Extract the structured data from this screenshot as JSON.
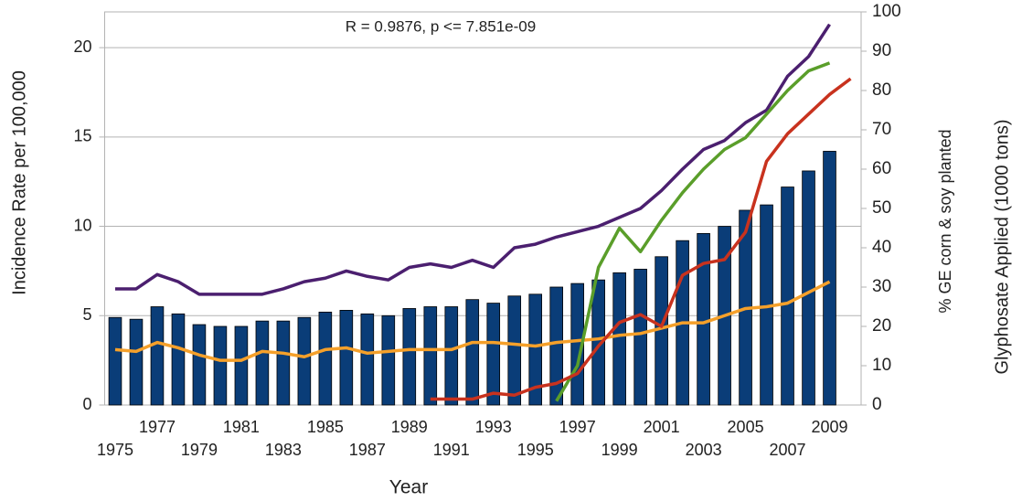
{
  "chart_data": {
    "type": "bar",
    "annotation": "R = 0.9876, p <= 7.851e-09",
    "x_label": "Year",
    "y_label": "Incidence Rate per 100,000",
    "y2_labels": [
      {
        "text": "% GE corn & soy planted",
        "color": "#5a9e2a"
      },
      {
        "text": "Glyphosate Applied (1000 tons)",
        "color": "#c8321e"
      }
    ],
    "categories": [
      "1975",
      null,
      "1977",
      null,
      "1979",
      null,
      "1981",
      null,
      "1983",
      null,
      "1985",
      null,
      "1987",
      null,
      "1989",
      null,
      "1991",
      null,
      "1993",
      null,
      "1995",
      null,
      "1997",
      null,
      "1999",
      null,
      "2001",
      null,
      "2003",
      null,
      "2005",
      null,
      "2007",
      null,
      "2009",
      null
    ],
    "ylim": [
      0,
      22
    ],
    "yticks": [
      0,
      5,
      10,
      15,
      20
    ],
    "y2lim": [
      0,
      100
    ],
    "y2ticks": [
      0,
      10,
      20,
      30,
      40,
      50,
      60,
      70,
      80,
      90,
      100
    ],
    "y2_color": "#c8321e",
    "grid": true,
    "series": [
      {
        "type": "bar",
        "color": "#0a3d78",
        "values": [
          4.9,
          4.8,
          5.5,
          5.1,
          4.5,
          4.4,
          4.4,
          4.7,
          4.7,
          4.9,
          5.2,
          5.3,
          5.1,
          5.0,
          5.4,
          5.5,
          5.5,
          5.9,
          5.7,
          6.1,
          6.2,
          6.6,
          6.8,
          7.0,
          7.4,
          7.6,
          8.3,
          9.2,
          9.6,
          10.0,
          10.9,
          11.2,
          12.2,
          13.1,
          14.2,
          null
        ]
      },
      {
        "type": "line",
        "color": "#4b1f6f",
        "values": [
          6.5,
          6.5,
          7.3,
          6.9,
          6.2,
          6.2,
          6.2,
          6.2,
          6.5,
          6.9,
          7.1,
          7.5,
          7.2,
          7.0,
          7.7,
          7.9,
          7.7,
          8.1,
          7.7,
          8.8,
          9.0,
          9.4,
          9.7,
          10.0,
          10.5,
          11.0,
          12.0,
          13.2,
          14.3,
          14.8,
          15.8,
          16.5,
          18.4,
          19.5,
          21.3,
          null
        ]
      },
      {
        "type": "line",
        "color": "#f5a02a",
        "values": [
          3.1,
          3.0,
          3.5,
          3.2,
          2.8,
          2.5,
          2.5,
          3.0,
          2.9,
          2.7,
          3.1,
          3.2,
          2.9,
          3.0,
          3.1,
          3.1,
          3.1,
          3.5,
          3.5,
          3.4,
          3.3,
          3.5,
          3.6,
          3.7,
          3.9,
          4.0,
          4.3,
          4.6,
          4.6,
          5.0,
          5.4,
          5.5,
          5.7,
          6.3,
          6.9,
          null
        ]
      },
      {
        "type": "line",
        "axis": "y2",
        "color": "#5a9e2a",
        "values": [
          null,
          null,
          null,
          null,
          null,
          null,
          null,
          null,
          null,
          null,
          null,
          null,
          null,
          null,
          null,
          null,
          null,
          null,
          null,
          null,
          null,
          1,
          10,
          35,
          45,
          39,
          47,
          54,
          60,
          65,
          68,
          74,
          80,
          85,
          87,
          null
        ]
      },
      {
        "type": "line",
        "axis": "y2",
        "color": "#c8321e",
        "values": [
          null,
          null,
          null,
          null,
          null,
          null,
          null,
          null,
          null,
          null,
          null,
          null,
          null,
          null,
          null,
          1.5,
          1.5,
          1.5,
          3,
          2.5,
          4.5,
          5.5,
          8,
          15,
          21,
          23,
          20,
          33,
          36,
          37,
          44,
          62,
          69,
          74,
          79,
          83
        ]
      }
    ]
  }
}
